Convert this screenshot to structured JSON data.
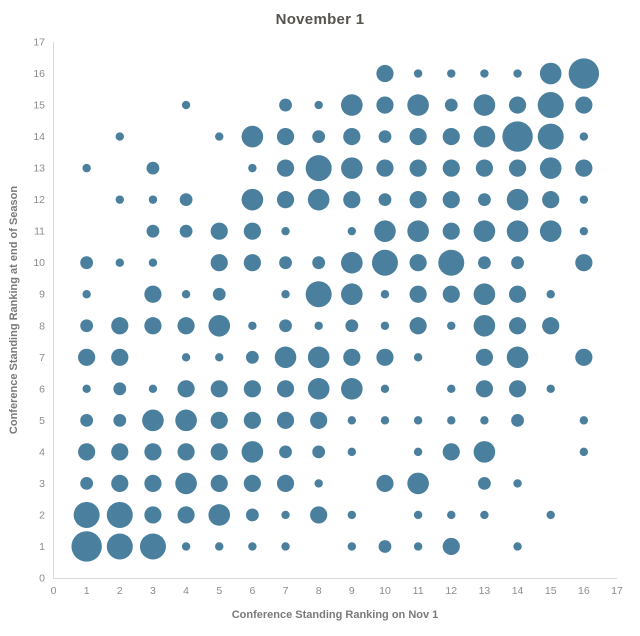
{
  "chart_data": {
    "type": "scatter",
    "title": "November 1",
    "xlabel": "Conference Standing Ranking on Nov 1",
    "ylabel": "Conference Standing Ranking at end of Season",
    "xlim": [
      0,
      17
    ],
    "ylim": [
      0,
      17
    ],
    "grid": false,
    "legend": "none",
    "bubble_color": "#4a7f9e",
    "x_ticks": [
      0,
      1,
      2,
      3,
      4,
      5,
      6,
      7,
      8,
      9,
      10,
      11,
      12,
      13,
      14,
      15,
      16,
      17
    ],
    "y_ticks": [
      0,
      1,
      2,
      3,
      4,
      5,
      6,
      7,
      8,
      9,
      10,
      11,
      12,
      13,
      14,
      15,
      16,
      17
    ],
    "point_format": [
      "nov1_rank",
      "end_of_season_rank",
      "size"
    ],
    "points": [
      [
        1,
        1,
        6
      ],
      [
        1,
        2,
        5
      ],
      [
        1,
        3,
        2
      ],
      [
        1,
        4,
        3
      ],
      [
        1,
        5,
        2
      ],
      [
        1,
        6,
        1
      ],
      [
        1,
        7,
        3
      ],
      [
        1,
        8,
        2
      ],
      [
        1,
        9,
        1
      ],
      [
        1,
        10,
        2
      ],
      [
        1,
        13,
        1
      ],
      [
        2,
        1,
        5
      ],
      [
        2,
        2,
        5
      ],
      [
        2,
        3,
        3
      ],
      [
        2,
        4,
        3
      ],
      [
        2,
        5,
        2
      ],
      [
        2,
        6,
        2
      ],
      [
        2,
        7,
        3
      ],
      [
        2,
        8,
        3
      ],
      [
        2,
        10,
        1
      ],
      [
        2,
        12,
        1
      ],
      [
        2,
        14,
        1
      ],
      [
        3,
        1,
        5
      ],
      [
        3,
        2,
        3
      ],
      [
        3,
        3,
        3
      ],
      [
        3,
        4,
        3
      ],
      [
        3,
        5,
        4
      ],
      [
        3,
        6,
        1
      ],
      [
        3,
        8,
        3
      ],
      [
        3,
        9,
        3
      ],
      [
        3,
        10,
        1
      ],
      [
        3,
        11,
        2
      ],
      [
        3,
        12,
        1
      ],
      [
        3,
        13,
        2
      ],
      [
        4,
        1,
        1
      ],
      [
        4,
        2,
        3
      ],
      [
        4,
        3,
        4
      ],
      [
        4,
        4,
        3
      ],
      [
        4,
        5,
        4
      ],
      [
        4,
        6,
        3
      ],
      [
        4,
        7,
        1
      ],
      [
        4,
        8,
        3
      ],
      [
        4,
        9,
        1
      ],
      [
        4,
        11,
        2
      ],
      [
        4,
        12,
        2
      ],
      [
        4,
        15,
        1
      ],
      [
        5,
        1,
        1
      ],
      [
        5,
        2,
        4
      ],
      [
        5,
        3,
        3
      ],
      [
        5,
        4,
        3
      ],
      [
        5,
        5,
        3
      ],
      [
        5,
        6,
        3
      ],
      [
        5,
        7,
        1
      ],
      [
        5,
        8,
        4
      ],
      [
        5,
        9,
        2
      ],
      [
        5,
        10,
        3
      ],
      [
        5,
        11,
        3
      ],
      [
        5,
        14,
        1
      ],
      [
        6,
        1,
        1
      ],
      [
        6,
        2,
        2
      ],
      [
        6,
        3,
        3
      ],
      [
        6,
        4,
        4
      ],
      [
        6,
        5,
        3
      ],
      [
        6,
        6,
        3
      ],
      [
        6,
        7,
        2
      ],
      [
        6,
        8,
        1
      ],
      [
        6,
        10,
        3
      ],
      [
        6,
        11,
        3
      ],
      [
        6,
        12,
        4
      ],
      [
        6,
        13,
        1
      ],
      [
        6,
        14,
        4
      ],
      [
        7,
        1,
        1
      ],
      [
        7,
        2,
        1
      ],
      [
        7,
        3,
        3
      ],
      [
        7,
        4,
        2
      ],
      [
        7,
        5,
        3
      ],
      [
        7,
        6,
        3
      ],
      [
        7,
        7,
        4
      ],
      [
        7,
        8,
        2
      ],
      [
        7,
        9,
        1
      ],
      [
        7,
        10,
        2
      ],
      [
        7,
        11,
        1
      ],
      [
        7,
        12,
        3
      ],
      [
        7,
        13,
        3
      ],
      [
        7,
        14,
        3
      ],
      [
        7,
        15,
        2
      ],
      [
        8,
        2,
        3
      ],
      [
        8,
        3,
        1
      ],
      [
        8,
        4,
        2
      ],
      [
        8,
        5,
        3
      ],
      [
        8,
        6,
        4
      ],
      [
        8,
        7,
        4
      ],
      [
        8,
        8,
        1
      ],
      [
        8,
        9,
        5
      ],
      [
        8,
        10,
        2
      ],
      [
        8,
        12,
        4
      ],
      [
        8,
        13,
        5
      ],
      [
        8,
        14,
        2
      ],
      [
        8,
        15,
        1
      ],
      [
        9,
        1,
        1
      ],
      [
        9,
        2,
        1
      ],
      [
        9,
        4,
        1
      ],
      [
        9,
        5,
        1
      ],
      [
        9,
        6,
        4
      ],
      [
        9,
        7,
        3
      ],
      [
        9,
        8,
        2
      ],
      [
        9,
        9,
        4
      ],
      [
        9,
        10,
        4
      ],
      [
        9,
        11,
        1
      ],
      [
        9,
        12,
        3
      ],
      [
        9,
        13,
        4
      ],
      [
        9,
        14,
        3
      ],
      [
        9,
        15,
        4
      ],
      [
        10,
        1,
        2
      ],
      [
        10,
        3,
        3
      ],
      [
        10,
        5,
        1
      ],
      [
        10,
        6,
        1
      ],
      [
        10,
        7,
        3
      ],
      [
        10,
        8,
        1
      ],
      [
        10,
        9,
        1
      ],
      [
        10,
        10,
        5
      ],
      [
        10,
        11,
        4
      ],
      [
        10,
        12,
        2
      ],
      [
        10,
        13,
        3
      ],
      [
        10,
        14,
        2
      ],
      [
        10,
        15,
        3
      ],
      [
        10,
        16,
        3
      ],
      [
        11,
        1,
        1
      ],
      [
        11,
        2,
        1
      ],
      [
        11,
        3,
        4
      ],
      [
        11,
        4,
        1
      ],
      [
        11,
        5,
        1
      ],
      [
        11,
        7,
        1
      ],
      [
        11,
        8,
        3
      ],
      [
        11,
        9,
        3
      ],
      [
        11,
        10,
        3
      ],
      [
        11,
        11,
        4
      ],
      [
        11,
        12,
        3
      ],
      [
        11,
        13,
        3
      ],
      [
        11,
        14,
        3
      ],
      [
        11,
        15,
        4
      ],
      [
        11,
        16,
        1
      ],
      [
        12,
        1,
        3
      ],
      [
        12,
        2,
        1
      ],
      [
        12,
        4,
        3
      ],
      [
        12,
        5,
        1
      ],
      [
        12,
        6,
        1
      ],
      [
        12,
        8,
        1
      ],
      [
        12,
        9,
        3
      ],
      [
        12,
        10,
        5
      ],
      [
        12,
        11,
        3
      ],
      [
        12,
        12,
        3
      ],
      [
        12,
        13,
        3
      ],
      [
        12,
        14,
        3
      ],
      [
        12,
        15,
        2
      ],
      [
        12,
        16,
        1
      ],
      [
        13,
        2,
        1
      ],
      [
        13,
        3,
        2
      ],
      [
        13,
        4,
        4
      ],
      [
        13,
        5,
        1
      ],
      [
        13,
        6,
        3
      ],
      [
        13,
        7,
        3
      ],
      [
        13,
        8,
        4
      ],
      [
        13,
        9,
        4
      ],
      [
        13,
        10,
        2
      ],
      [
        13,
        11,
        4
      ],
      [
        13,
        12,
        2
      ],
      [
        13,
        13,
        3
      ],
      [
        13,
        14,
        4
      ],
      [
        13,
        15,
        4
      ],
      [
        13,
        16,
        1
      ],
      [
        14,
        1,
        1
      ],
      [
        14,
        3,
        1
      ],
      [
        14,
        5,
        2
      ],
      [
        14,
        6,
        3
      ],
      [
        14,
        7,
        4
      ],
      [
        14,
        8,
        3
      ],
      [
        14,
        9,
        3
      ],
      [
        14,
        10,
        2
      ],
      [
        14,
        11,
        4
      ],
      [
        14,
        12,
        4
      ],
      [
        14,
        13,
        3
      ],
      [
        14,
        14,
        6
      ],
      [
        14,
        15,
        3
      ],
      [
        14,
        16,
        1
      ],
      [
        15,
        2,
        1
      ],
      [
        15,
        6,
        1
      ],
      [
        15,
        8,
        3
      ],
      [
        15,
        9,
        1
      ],
      [
        15,
        11,
        4
      ],
      [
        15,
        12,
        3
      ],
      [
        15,
        13,
        4
      ],
      [
        15,
        14,
        5
      ],
      [
        15,
        15,
        5
      ],
      [
        15,
        16,
        4
      ],
      [
        16,
        4,
        1
      ],
      [
        16,
        5,
        1
      ],
      [
        16,
        7,
        3
      ],
      [
        16,
        10,
        3
      ],
      [
        16,
        11,
        1
      ],
      [
        16,
        12,
        1
      ],
      [
        16,
        13,
        3
      ],
      [
        16,
        14,
        1
      ],
      [
        16,
        15,
        3
      ],
      [
        16,
        16,
        6
      ]
    ]
  }
}
